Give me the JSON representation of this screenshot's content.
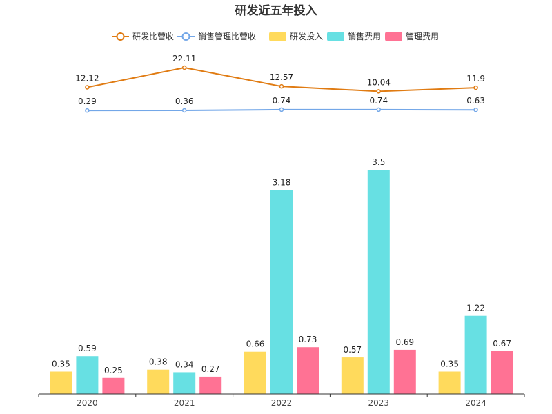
{
  "chart_data": {
    "type": "bar",
    "title": "研发近五年投入",
    "categories": [
      "2020",
      "2021",
      "2022",
      "2023",
      "2024"
    ],
    "series": [
      {
        "name": "研发投入",
        "kind": "bar",
        "color": "#FFDA5C",
        "values": [
          0.35,
          0.38,
          0.66,
          0.57,
          0.35
        ]
      },
      {
        "name": "销售费用",
        "kind": "bar",
        "color": "#67E0E3",
        "values": [
          0.59,
          0.34,
          3.18,
          3.5,
          1.22
        ]
      },
      {
        "name": "管理费用",
        "kind": "bar",
        "color": "#FF7294",
        "values": [
          0.25,
          0.27,
          0.73,
          0.69,
          0.67
        ]
      }
    ],
    "line_series": [
      {
        "name": "研发比营收",
        "kind": "line",
        "color": "#E07B12",
        "values": [
          12.12,
          22.11,
          12.57,
          10.04,
          11.9
        ]
      },
      {
        "name": "销售管理比营收",
        "kind": "line",
        "color": "#73A7E8",
        "values": [
          0.29,
          0.36,
          0.74,
          0.74,
          0.63
        ]
      }
    ],
    "legend": {
      "placement": "top-center",
      "order": [
        "研发比营收",
        "销售管理比营收",
        "研发投入",
        "销售费用",
        "管理费用"
      ]
    },
    "grid": false,
    "ylim_bars": [
      0,
      3.5
    ],
    "ylim_lines": [
      0,
      22.11
    ]
  }
}
